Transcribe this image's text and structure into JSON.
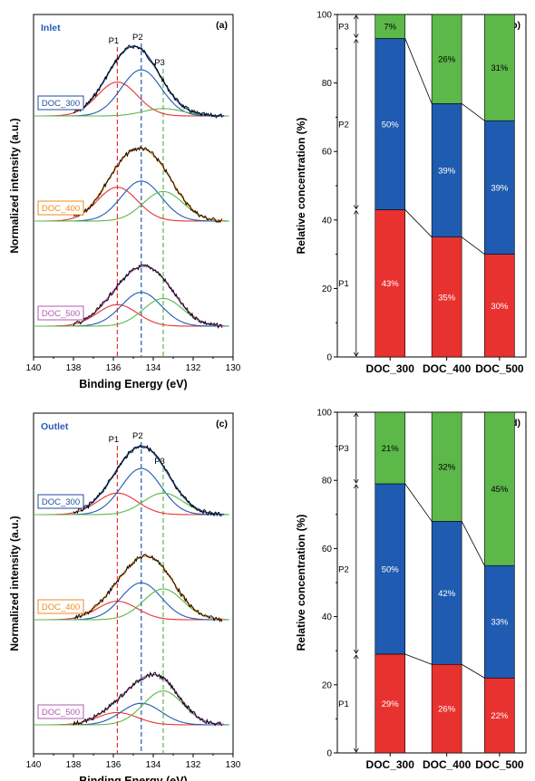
{
  "chart_data": [
    {
      "panel": "(a)",
      "type": "line",
      "title": "Inlet",
      "xlabel": "Binding Energy (eV)",
      "ylabel": "Normalized intensity (a.u.)",
      "xlim": [
        140,
        130
      ],
      "xticks": [
        "140",
        "138",
        "136",
        "134",
        "132",
        "130"
      ],
      "peak_labels": [
        "P1",
        "P2",
        "P3"
      ],
      "peak_positions": [
        135.8,
        134.6,
        133.5
      ],
      "samples": [
        {
          "name": "DOC_300",
          "color": "#1f4e9c",
          "fit_color": "#1f4e9c",
          "amplitudes": [
            0.55,
            0.75,
            0.12
          ]
        },
        {
          "name": "DOC_400",
          "color": "#f08a1c",
          "fit_color": "#f08a1c",
          "amplitudes": [
            0.55,
            0.65,
            0.48
          ]
        },
        {
          "name": "DOC_500",
          "color": "#b05ab0",
          "fit_color": "#b05ab0",
          "amplitudes": [
            0.35,
            0.55,
            0.45
          ]
        }
      ]
    },
    {
      "panel": "(b)",
      "type": "bar",
      "stacked": true,
      "ylabel": "Relative concentration (%)",
      "ylim": [
        0,
        100
      ],
      "yticks": [
        "0",
        "20",
        "40",
        "60",
        "80",
        "100"
      ],
      "categories": [
        "DOC_300",
        "DOC_400",
        "DOC_500"
      ],
      "series": [
        {
          "name": "P1",
          "color": "#e8322f",
          "values": [
            43,
            35,
            30
          ],
          "labels": [
            "43%",
            "35%",
            "30%"
          ]
        },
        {
          "name": "P2",
          "color": "#1f5bb0",
          "values": [
            50,
            39,
            39
          ],
          "labels": [
            "50%",
            "39%",
            "39%"
          ]
        },
        {
          "name": "P3",
          "color": "#5cb849",
          "values": [
            7,
            26,
            31
          ],
          "labels": [
            "7%",
            "26%",
            "31%"
          ]
        }
      ],
      "bracket_labels": [
        "P1",
        "P2",
        "P3"
      ]
    },
    {
      "panel": "(c)",
      "type": "line",
      "title": "Outlet",
      "xlabel": "Binding Energy (eV)",
      "ylabel": "Normalized intensity (a.u.)",
      "xlim": [
        140,
        130
      ],
      "xticks": [
        "140",
        "138",
        "136",
        "134",
        "132",
        "130"
      ],
      "peak_labels": [
        "P1",
        "P2",
        "P3"
      ],
      "peak_positions": [
        135.8,
        134.6,
        133.5
      ],
      "samples": [
        {
          "name": "DOC_300",
          "color": "#1f4e9c",
          "fit_color": "#1f4e9c",
          "amplitudes": [
            0.35,
            0.75,
            0.35
          ]
        },
        {
          "name": "DOC_400",
          "color": "#f08a1c",
          "fit_color": "#f08a1c",
          "amplitudes": [
            0.3,
            0.6,
            0.5
          ]
        },
        {
          "name": "DOC_500",
          "color": "#b05ab0",
          "fit_color": "#b05ab0",
          "amplitudes": [
            0.2,
            0.35,
            0.55
          ]
        }
      ]
    },
    {
      "panel": "(d)",
      "type": "bar",
      "stacked": true,
      "ylabel": "Relative concentration (%)",
      "ylim": [
        0,
        100
      ],
      "yticks": [
        "0",
        "20",
        "40",
        "60",
        "80",
        "100"
      ],
      "categories": [
        "DOC_300",
        "DOC_400",
        "DOC_500"
      ],
      "series": [
        {
          "name": "P1",
          "color": "#e8322f",
          "values": [
            29,
            26,
            22
          ],
          "labels": [
            "29%",
            "26%",
            "22%"
          ]
        },
        {
          "name": "P2",
          "color": "#1f5bb0",
          "values": [
            50,
            42,
            33
          ],
          "labels": [
            "50%",
            "42%",
            "33%"
          ]
        },
        {
          "name": "P3",
          "color": "#5cb849",
          "values": [
            21,
            32,
            45
          ],
          "labels": [
            "21%",
            "32%",
            "45%"
          ]
        }
      ],
      "bracket_labels": [
        "P1",
        "P2",
        "P3"
      ]
    }
  ]
}
